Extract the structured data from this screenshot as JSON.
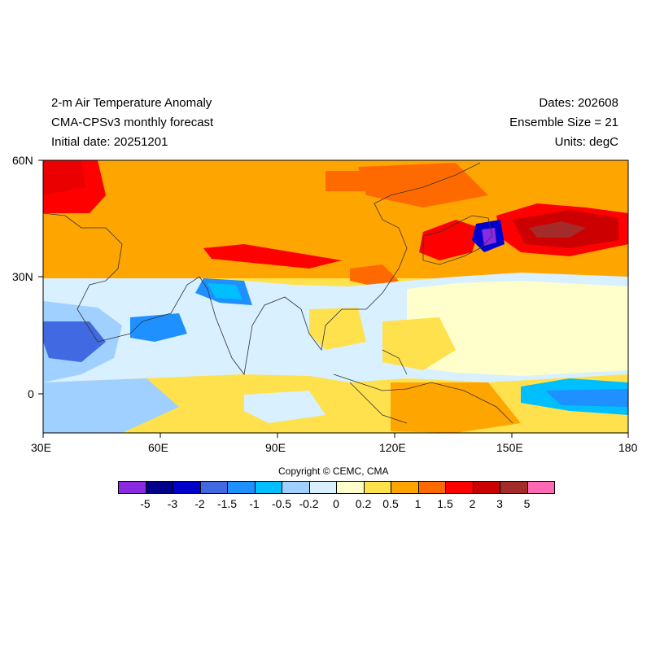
{
  "header": {
    "title": "2-m Air Temperature Anomaly",
    "subtitle": "CMA-CPSv3 monthly forecast",
    "initial_date": "Initial date: 20251201",
    "dates": "Dates: 202608",
    "ensemble": "Ensemble Size = 21",
    "units": "Units: degC"
  },
  "axes": {
    "lat_ticks": [
      "60N",
      "30N",
      "0"
    ],
    "lon_ticks": [
      "30E",
      "60E",
      "90E",
      "120E",
      "150E",
      "180"
    ]
  },
  "map": {
    "lon_range": [
      30,
      180
    ],
    "lat_range": [
      -10,
      60
    ],
    "background_color": "#FFF0A0"
  },
  "copyright": "Copyright © CEMC, CMA",
  "colorbar": {
    "labels": [
      "-5",
      "-3",
      "-2",
      "-1.5",
      "-1",
      "-0.5",
      "-0.2",
      "0",
      "0.2",
      "0.5",
      "1",
      "1.5",
      "2",
      "3",
      "5"
    ],
    "colors": [
      "#8A2BE2",
      "#00008B",
      "#0000CD",
      "#4169E1",
      "#1E90FF",
      "#00BFFF",
      "#9FD0FF",
      "#D8F0FF",
      "#FFFFCC",
      "#FFE14D",
      "#FFA500",
      "#FF6A00",
      "#FF0000",
      "#CC0000",
      "#A52A2A",
      "#FF69B4"
    ]
  }
}
